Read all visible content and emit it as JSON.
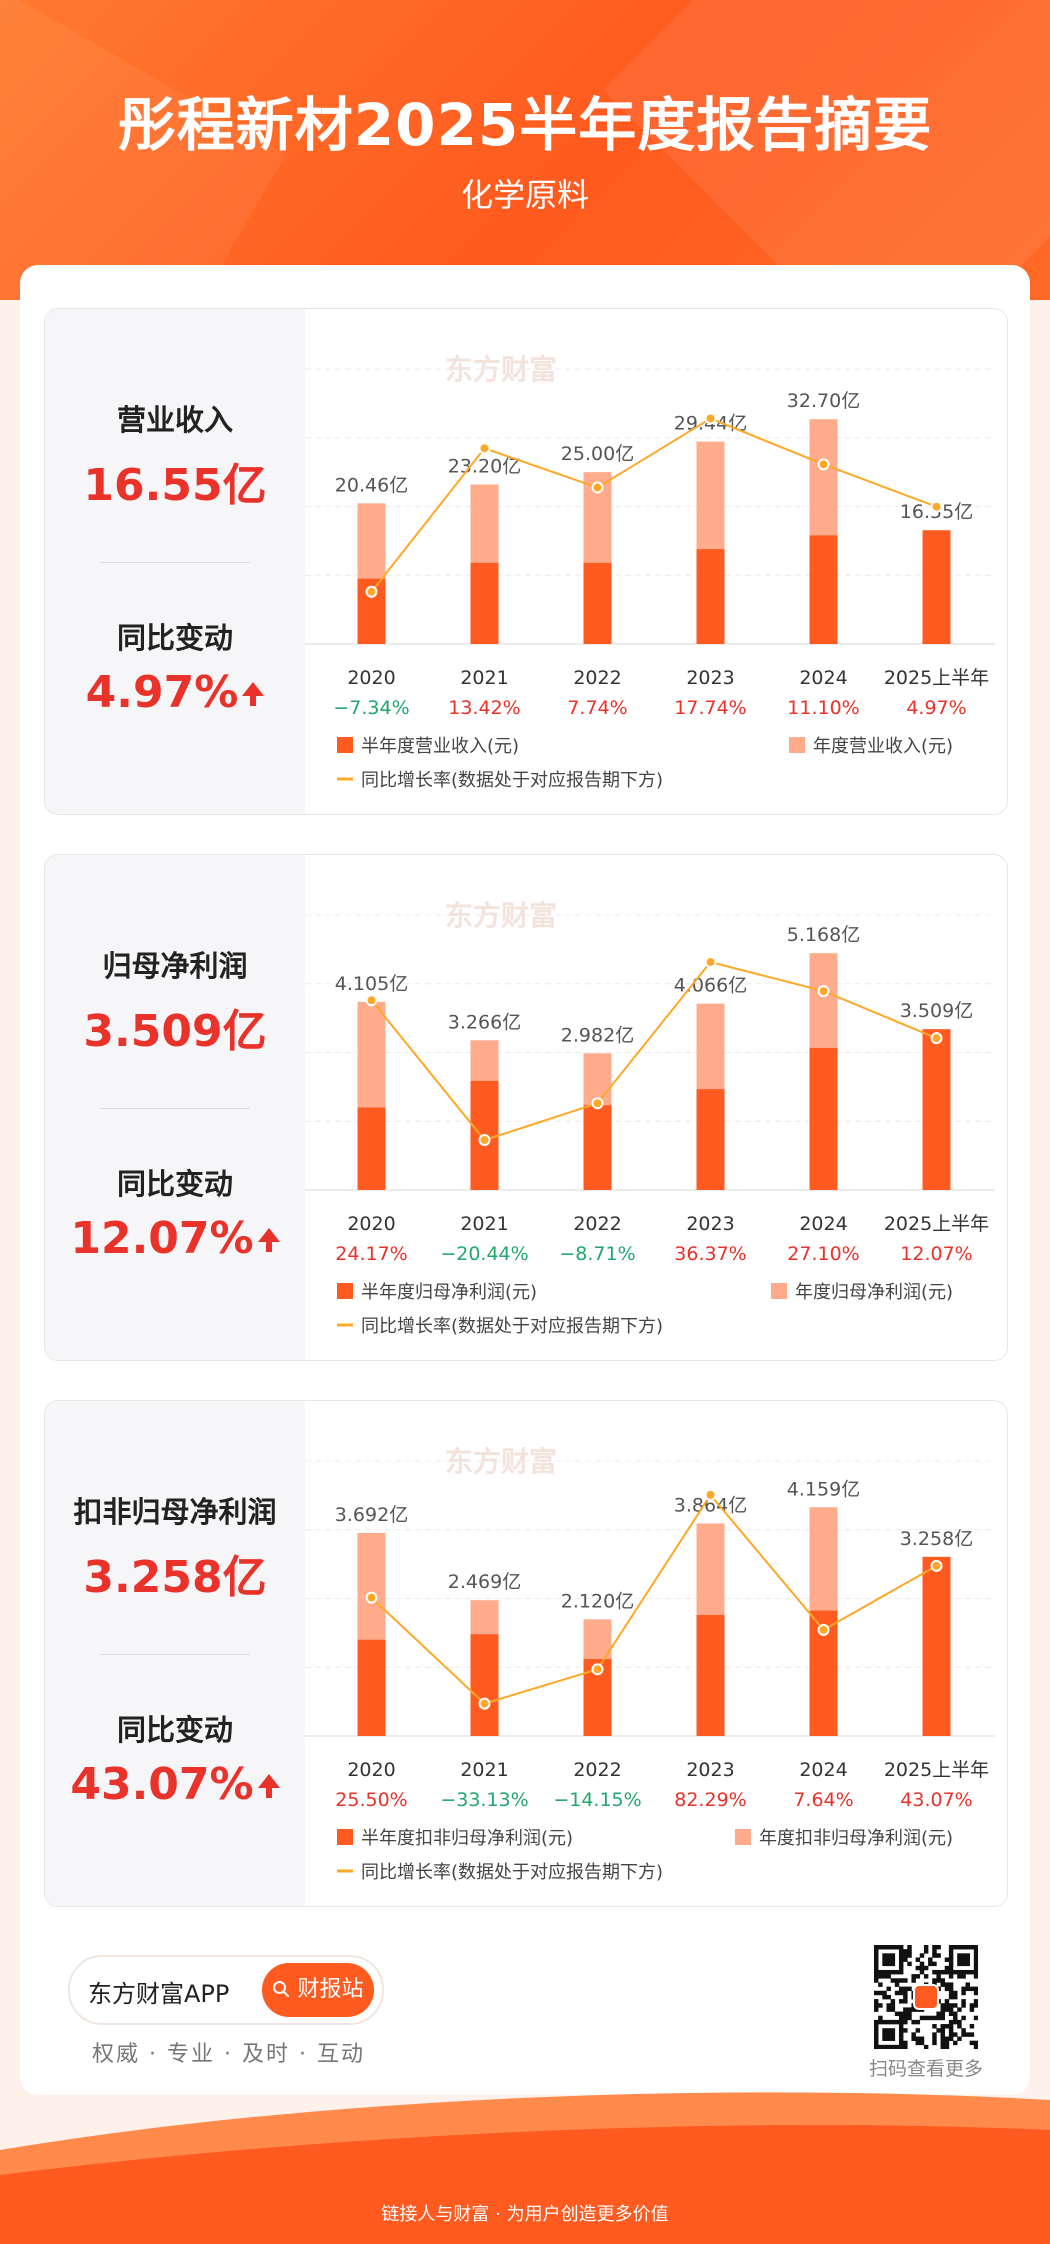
{
  "header": {
    "title": "彤程新材2025半年度报告摘要",
    "subtitle": "化学原料"
  },
  "watermark": "东方财富",
  "panels": [
    {
      "metric_label": "营业收入",
      "metric_value": "16.55亿",
      "change_label": "同比变动",
      "change_value": "4.97%"
    },
    {
      "metric_label": "归母净利润",
      "metric_value": "3.509亿",
      "change_label": "同比变动",
      "change_value": "12.07%"
    },
    {
      "metric_label": "扣非归母净利润",
      "metric_value": "3.258亿",
      "change_label": "同比变动",
      "change_value": "43.07%"
    }
  ],
  "chart_data": [
    {
      "type": "bar",
      "categories": [
        "2020",
        "2021",
        "2022",
        "2023",
        "2024",
        "2025上半年"
      ],
      "annual_labels": [
        "20.46亿",
        "23.20亿",
        "25.00亿",
        "29.44亿",
        "32.70亿",
        "16.55亿"
      ],
      "annual_values": [
        20.46,
        23.2,
        25.0,
        29.44,
        32.7,
        16.55
      ],
      "half_values": [
        9.5,
        11.8,
        11.8,
        13.8,
        15.8,
        16.55
      ],
      "growth_labels": [
        "−7.34%",
        "13.42%",
        "7.74%",
        "17.74%",
        "11.10%",
        "4.97%"
      ],
      "growth_values": [
        -7.34,
        13.42,
        7.74,
        17.74,
        11.1,
        4.97
      ],
      "legend": {
        "half": "半年度营业收入(元)",
        "annual": "年度营业收入(元)",
        "growth": "同比增长率(数据处于对应报告期下方)"
      },
      "ymax": 40,
      "growth_range": [
        -12,
        22
      ],
      "colors": {
        "half": "#ff5a1f",
        "annual": "#ffab8c",
        "growth": "#ffa726",
        "up": "#e8322a",
        "down": "#21a671"
      }
    },
    {
      "type": "bar",
      "categories": [
        "2020",
        "2021",
        "2022",
        "2023",
        "2024",
        "2025上半年"
      ],
      "annual_labels": [
        "4.105亿",
        "3.266亿",
        "2.982亿",
        "4.066亿",
        "5.168亿",
        "3.509亿"
      ],
      "annual_values": [
        4.105,
        3.266,
        2.982,
        4.066,
        5.168,
        3.509
      ],
      "half_values": [
        1.8,
        2.38,
        1.85,
        2.2,
        3.1,
        3.509
      ],
      "growth_labels": [
        "24.17%",
        "−20.44%",
        "−8.71%",
        "36.37%",
        "27.10%",
        "12.07%"
      ],
      "growth_values": [
        24.17,
        -20.44,
        -8.71,
        36.37,
        27.1,
        12.07
      ],
      "legend": {
        "half": "半年度归母净利润(元)",
        "annual": "年度归母净利润(元)",
        "growth": "同比增长率(数据处于对应报告期下方)"
      },
      "ymax": 6,
      "growth_range": [
        -30,
        45
      ],
      "colors": {
        "half": "#ff5a1f",
        "annual": "#ffab8c",
        "growth": "#ffa726",
        "up": "#e8322a",
        "down": "#21a671"
      }
    },
    {
      "type": "bar",
      "categories": [
        "2020",
        "2021",
        "2022",
        "2023",
        "2024",
        "2025上半年"
      ],
      "annual_labels": [
        "3.692亿",
        "2.469亿",
        "2.120亿",
        "3.864亿",
        "4.159亿",
        "3.258亿"
      ],
      "annual_values": [
        3.692,
        2.469,
        2.12,
        3.864,
        4.159,
        3.258
      ],
      "half_values": [
        1.75,
        1.85,
        1.4,
        2.2,
        2.28,
        3.258
      ],
      "growth_labels": [
        "25.50%",
        "−33.13%",
        "−14.15%",
        "82.29%",
        "7.64%",
        "43.07%"
      ],
      "growth_values": [
        25.5,
        -33.13,
        -14.15,
        82.29,
        7.64,
        43.07
      ],
      "legend": {
        "half": "半年度扣非归母净利润(元)",
        "annual": "年度扣非归母净利润(元)",
        "growth": "同比增长率(数据处于对应报告期下方)"
      },
      "ymax": 5,
      "growth_range": [
        -40,
        90
      ],
      "colors": {
        "half": "#ff5a1f",
        "annual": "#ffab8c",
        "growth": "#ffa726",
        "up": "#e8322a",
        "down": "#21a671"
      }
    }
  ],
  "footer": {
    "brand": "东方财富APP",
    "button": "财报站",
    "slogan": "权威 · 专业 · 及时 · 互动",
    "qr_caption": "扫码查看更多",
    "bottom_text": "链接人与财富 · 为用户创造更多价值"
  }
}
